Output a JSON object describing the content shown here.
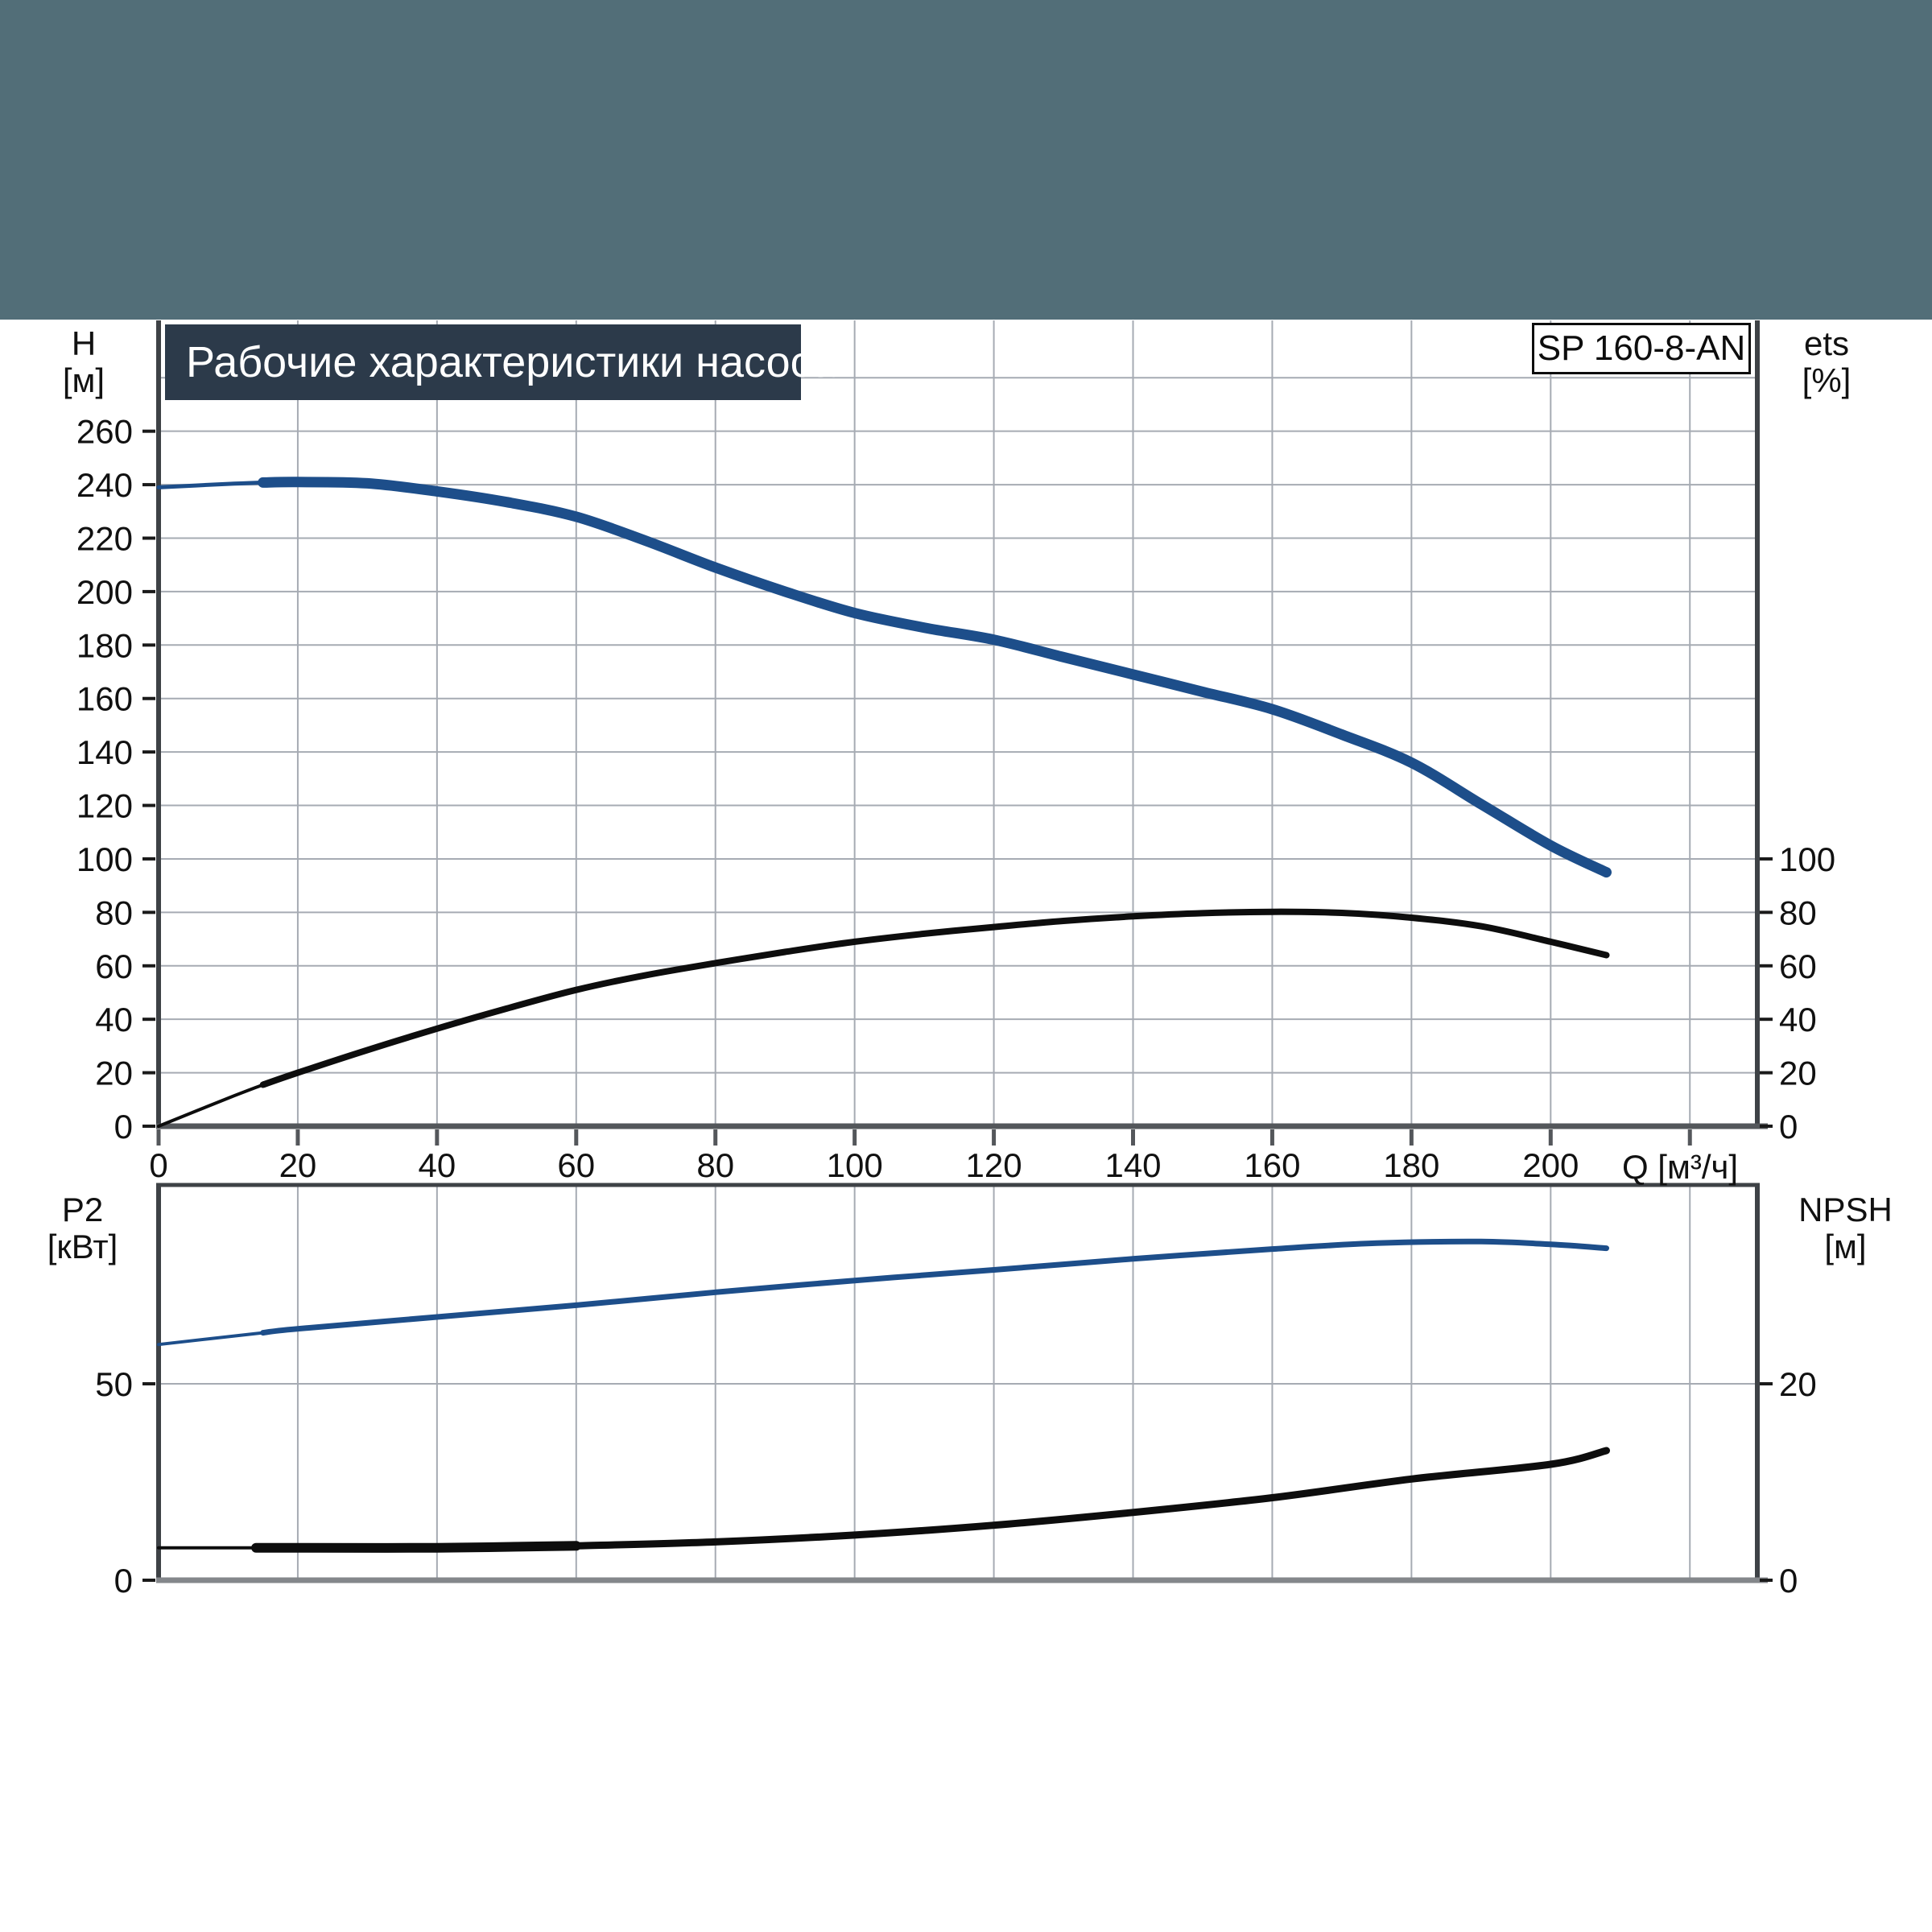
{
  "banner_color": "#526E78",
  "chart_data": [
    {
      "type": "line",
      "title": "Рабочие характеристики насоса",
      "badge": "SP 160-8-AN",
      "grid": true,
      "legend": "none",
      "x": {
        "label": "Q [м³/ч]",
        "min": 0,
        "max": 229.7,
        "tick_step": 20,
        "grid_max": 220,
        "labeled_ticks": [
          0,
          20,
          40,
          60,
          80,
          100,
          120,
          140,
          160,
          180,
          200
        ]
      },
      "left_axis": {
        "name": "H",
        "unit": "[м]",
        "range": [
          0,
          301
        ],
        "ticks": [
          260,
          240,
          220,
          200,
          180,
          160,
          140,
          120,
          100,
          80,
          60,
          40,
          20,
          0
        ],
        "grid_values": [
          280,
          260,
          240,
          220,
          200,
          180,
          160,
          140,
          120,
          100,
          80,
          60,
          40,
          20
        ]
      },
      "right_axis": {
        "name": "ets",
        "unit": "[%]",
        "range": [
          0,
          301
        ],
        "ticks": [
          100,
          80,
          60,
          40,
          20,
          0
        ]
      },
      "series": [
        {
          "name": "head",
          "axis": "left",
          "color": "#1D4E8A",
          "widths": [
            {
              "to": 15,
              "w": 5
            },
            {
              "to": 210,
              "w": 13
            }
          ],
          "points": [
            [
              0,
              239
            ],
            [
              10,
              240.3
            ],
            [
              15,
              240.8
            ],
            [
              20,
              241
            ],
            [
              30,
              240.5
            ],
            [
              40,
              237.5
            ],
            [
              50,
              233.5
            ],
            [
              60,
              228
            ],
            [
              70,
              219
            ],
            [
              80,
              209
            ],
            [
              90,
              200
            ],
            [
              100,
              192
            ],
            [
              110,
              186.5
            ],
            [
              120,
              182
            ],
            [
              130,
              175.5
            ],
            [
              140,
              169
            ],
            [
              150,
              162.5
            ],
            [
              160,
              156
            ],
            [
              170,
              146.5
            ],
            [
              180,
              136
            ],
            [
              190,
              120.5
            ],
            [
              200,
              105
            ],
            [
              208,
              95
            ]
          ]
        },
        {
          "name": "efficiency",
          "axis": "right",
          "color": "#0d0d0d",
          "widths": [
            {
              "to": 15,
              "w": 4
            },
            {
              "to": 210,
              "w": 8
            }
          ],
          "points": [
            [
              0,
              0
            ],
            [
              10,
              10.5
            ],
            [
              15,
              15.5
            ],
            [
              20,
              20
            ],
            [
              30,
              28.5
            ],
            [
              40,
              36.5
            ],
            [
              50,
              44
            ],
            [
              60,
              51
            ],
            [
              70,
              56.5
            ],
            [
              80,
              61
            ],
            [
              90,
              65.2
            ],
            [
              100,
              69
            ],
            [
              110,
              72
            ],
            [
              120,
              74.5
            ],
            [
              130,
              76.8
            ],
            [
              140,
              78.5
            ],
            [
              150,
              79.7
            ],
            [
              160,
              80.2
            ],
            [
              170,
              79.8
            ],
            [
              180,
              78
            ],
            [
              190,
              74.8
            ],
            [
              200,
              69
            ],
            [
              208,
              64
            ]
          ]
        }
      ]
    },
    {
      "type": "line",
      "title": "",
      "grid": true,
      "legend": "none",
      "x": {
        "label": "",
        "min": 0,
        "max": 229.7,
        "tick_step": 20,
        "grid_max": 220,
        "labeled_ticks": []
      },
      "left_axis": {
        "name": "P2",
        "unit": "[кВт]",
        "range": [
          0,
          100.6
        ],
        "ticks": [
          50,
          0
        ],
        "grid_values": [
          50
        ]
      },
      "right_axis": {
        "name": "NPSH",
        "unit": "[м]",
        "range": [
          0,
          40.2
        ],
        "ticks": [
          20,
          0
        ]
      },
      "series": [
        {
          "name": "power_p2",
          "axis": "left",
          "color": "#1D4E8A",
          "widths": [
            {
              "to": 15,
              "w": 4
            },
            {
              "to": 210,
              "w": 7
            }
          ],
          "points": [
            [
              0,
              60
            ],
            [
              15,
              63
            ],
            [
              20,
              64
            ],
            [
              40,
              67
            ],
            [
              60,
              70
            ],
            [
              80,
              73.3
            ],
            [
              100,
              76.3
            ],
            [
              120,
              79
            ],
            [
              140,
              81.8
            ],
            [
              160,
              84.3
            ],
            [
              175,
              85.8
            ],
            [
              190,
              86.2
            ],
            [
              200,
              85.5
            ],
            [
              208,
              84.5
            ]
          ]
        },
        {
          "name": "npsh",
          "axis": "right",
          "color": "#0d0d0d",
          "widths": [
            {
              "to": 14,
              "w": 4
            },
            {
              "to": 60,
              "w": 12
            },
            {
              "to": 210,
              "w": 9
            }
          ],
          "points": [
            [
              0,
              3.3
            ],
            [
              14,
              3.3
            ],
            [
              20,
              3.3
            ],
            [
              40,
              3.3
            ],
            [
              60,
              3.5
            ],
            [
              80,
              3.9
            ],
            [
              100,
              4.6
            ],
            [
              120,
              5.6
            ],
            [
              140,
              6.9
            ],
            [
              160,
              8.4
            ],
            [
              180,
              10.3
            ],
            [
              200,
              11.8
            ],
            [
              208,
              13.2
            ]
          ]
        }
      ]
    }
  ]
}
